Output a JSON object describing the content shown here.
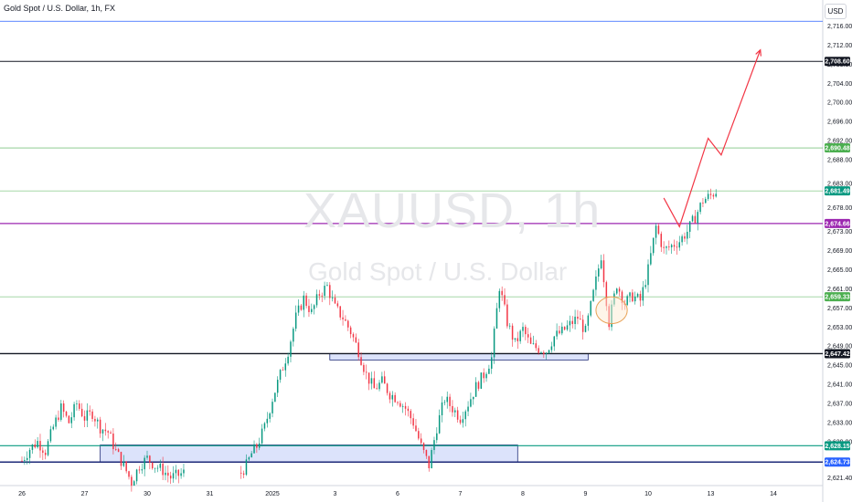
{
  "header": {
    "symbol_title": "Gold Spot / U.S. Dollar, 1h, FX",
    "currency_button": "USD"
  },
  "watermark": {
    "symbol": "XAUUSD, 1h",
    "description": "Gold Spot / U.S. Dollar"
  },
  "colors": {
    "up": "#089981",
    "down": "#f23645",
    "accent_line": "#2962ff",
    "zone_fill": "#d6defa",
    "zone_stroke": "#1e2a78",
    "projection": "#f23645"
  },
  "chart_data": {
    "type": "candlestick",
    "title": "Gold Spot / U.S. Dollar, 1h, FX",
    "xlabel": "",
    "ylabel": "",
    "ylim": [
      2620.0,
      2718.0
    ],
    "x_ticks": [
      {
        "label": "26",
        "pos": 0
      },
      {
        "label": "27",
        "pos": 24
      },
      {
        "label": "30",
        "pos": 48
      },
      {
        "label": "31",
        "pos": 72
      },
      {
        "label": "2025",
        "pos": 96
      },
      {
        "label": "3",
        "pos": 120
      },
      {
        "label": "6",
        "pos": 144
      },
      {
        "label": "7",
        "pos": 168
      },
      {
        "label": "8",
        "pos": 192
      },
      {
        "label": "9",
        "pos": 216
      },
      {
        "label": "10",
        "pos": 240
      },
      {
        "label": "13",
        "pos": 264
      },
      {
        "label": "14",
        "pos": 288
      }
    ],
    "x_range": [
      -1,
      290
    ],
    "y_ticks": [
      "2,716.00",
      "2,712.00",
      "2,708.00",
      "2,704.00",
      "2,700.00",
      "2,696.00",
      "2,692.00",
      "2,688.00",
      "2,683.00",
      "2,678.00",
      "2,673.00",
      "2,669.00",
      "2,665.00",
      "2,661.00",
      "2,657.00",
      "2,653.00",
      "2,649.00",
      "2,645.00",
      "2,641.00",
      "2,637.00",
      "2,633.00",
      "2,629.00",
      "2,621.40"
    ],
    "candle_range": {
      "first_x": 0,
      "last_x": 248
    },
    "close_path": [
      [
        0,
        2625.0
      ],
      [
        3,
        2627.5
      ],
      [
        6,
        2629.0
      ],
      [
        9,
        2627.0
      ],
      [
        12,
        2632.0
      ],
      [
        15,
        2636.0
      ],
      [
        18,
        2633.0
      ],
      [
        21,
        2637.0
      ],
      [
        24,
        2634.0
      ],
      [
        27,
        2635.0
      ],
      [
        30,
        2632.0
      ],
      [
        33,
        2631.0
      ],
      [
        36,
        2627.0
      ],
      [
        39,
        2624.0
      ],
      [
        42,
        2620.5
      ],
      [
        45,
        2624.0
      ],
      [
        48,
        2625.5
      ],
      [
        51,
        2624.0
      ],
      [
        54,
        2623.0
      ],
      [
        57,
        2621.5
      ],
      [
        60,
        2622.0
      ],
      [
        62,
        2622.5
      ],
      [
        84,
        2622.5
      ],
      [
        86,
        2624.0
      ],
      [
        88,
        2626.5
      ],
      [
        90,
        2628.0
      ],
      [
        93,
        2632.0
      ],
      [
        96,
        2638.0
      ],
      [
        99,
        2643.0
      ],
      [
        102,
        2648.0
      ],
      [
        105,
        2655.0
      ],
      [
        108,
        2659.0
      ],
      [
        111,
        2656.0
      ],
      [
        114,
        2660.0
      ],
      [
        117,
        2661.5
      ],
      [
        120,
        2657.0
      ],
      [
        123,
        2655.0
      ],
      [
        126,
        2652.0
      ],
      [
        129,
        2648.0
      ],
      [
        132,
        2643.0
      ],
      [
        135,
        2640.0
      ],
      [
        138,
        2641.5
      ],
      [
        141,
        2639.0
      ],
      [
        144,
        2638.0
      ],
      [
        147,
        2636.0
      ],
      [
        150,
        2633.0
      ],
      [
        153,
        2628.0
      ],
      [
        156,
        2624.0
      ],
      [
        159,
        2632.0
      ],
      [
        162,
        2638.0
      ],
      [
        165,
        2636.0
      ],
      [
        168,
        2634.0
      ],
      [
        171,
        2637.0
      ],
      [
        174,
        2640.5
      ],
      [
        177,
        2643.0
      ],
      [
        180,
        2646.5
      ],
      [
        183,
        2661.5
      ],
      [
        186,
        2654.0
      ],
      [
        189,
        2649.5
      ],
      [
        192,
        2652.5
      ],
      [
        195,
        2649.0
      ],
      [
        198,
        2648.5
      ],
      [
        201,
        2648.0
      ],
      [
        204,
        2651.0
      ],
      [
        207,
        2652.0
      ],
      [
        210,
        2653.5
      ],
      [
        213,
        2655.0
      ],
      [
        216,
        2652.0
      ],
      [
        219,
        2660.0
      ],
      [
        222,
        2668.0
      ],
      [
        225,
        2654.0
      ],
      [
        228,
        2662.0
      ],
      [
        231,
        2658.0
      ],
      [
        234,
        2659.5
      ],
      [
        237,
        2658.5
      ],
      [
        240,
        2665.0
      ],
      [
        243,
        2674.0
      ],
      [
        246,
        2669.0
      ],
      [
        249,
        2670.0
      ],
      [
        252,
        2671.0
      ],
      [
        255,
        2673.0
      ],
      [
        258,
        2676.0
      ],
      [
        261,
        2679.5
      ],
      [
        264,
        2680.5
      ],
      [
        266,
        2681.5
      ]
    ],
    "horizontal_lines": [
      {
        "name": "resistance-2716",
        "y": 2717.0,
        "color": "#2962ff",
        "width": 0.7
      },
      {
        "name": "target-2708",
        "y": 2708.6,
        "color": "#131722",
        "width": 1.0
      },
      {
        "name": "level-2690",
        "y": 2690.48,
        "color": "#4caf50",
        "width": 0.6
      },
      {
        "name": "level-2681",
        "y": 2681.49,
        "color": "#4caf50",
        "width": 0.5
      },
      {
        "name": "support-2674",
        "y": 2674.66,
        "color": "#9c27b0",
        "width": 1.2
      },
      {
        "name": "level-2659",
        "y": 2659.33,
        "color": "#4caf50",
        "width": 0.6
      },
      {
        "name": "support-2647",
        "y": 2647.42,
        "color": "#131722",
        "width": 1.4
      },
      {
        "name": "level-2628",
        "y": 2628.15,
        "color": "#089981",
        "width": 1.2
      },
      {
        "name": "level-2624",
        "y": 2624.73,
        "color": "#1e2a78",
        "width": 1.4
      }
    ],
    "price_badges": [
      {
        "label": "2,708.60",
        "y": 2708.6,
        "bg": "#131722",
        "fg": "#ffffff"
      },
      {
        "label": "2,690.48",
        "y": 2690.48,
        "bg": "#4caf50",
        "fg": "#ffffff"
      },
      {
        "label": "2,681.49",
        "y": 2681.49,
        "bg": "#089981",
        "fg": "#ffffff"
      },
      {
        "label": "2,674.66",
        "y": 2674.66,
        "bg": "#9c27b0",
        "fg": "#ffffff"
      },
      {
        "label": "2,659.33",
        "y": 2659.33,
        "bg": "#4caf50",
        "fg": "#ffffff"
      },
      {
        "label": "2,647.42",
        "y": 2647.42,
        "bg": "#131722",
        "fg": "#ffffff"
      },
      {
        "label": "2,628.15",
        "y": 2628.15,
        "bg": "#089981",
        "fg": "#ffffff"
      },
      {
        "label": "2,624.73",
        "y": 2624.73,
        "bg": "#2962ff",
        "fg": "#ffffff"
      }
    ],
    "zones": [
      {
        "name": "demand-zone-lower",
        "x1": 30,
        "x2": 190,
        "y1": 2628.3,
        "y2": 2624.7
      },
      {
        "name": "demand-zone-middle",
        "x1": 118,
        "x2": 217,
        "y1": 2647.4,
        "y2": 2646.1
      }
    ],
    "ellipse": {
      "cx": 226,
      "cy": 2656.5,
      "rx": 6,
      "ry": 2.8,
      "color": "#e8a256"
    },
    "projection": [
      [
        246,
        2680
      ],
      [
        252,
        2674.0
      ],
      [
        263,
        2692.5
      ],
      [
        268,
        2689.0
      ],
      [
        283,
        2711.0
      ]
    ]
  }
}
